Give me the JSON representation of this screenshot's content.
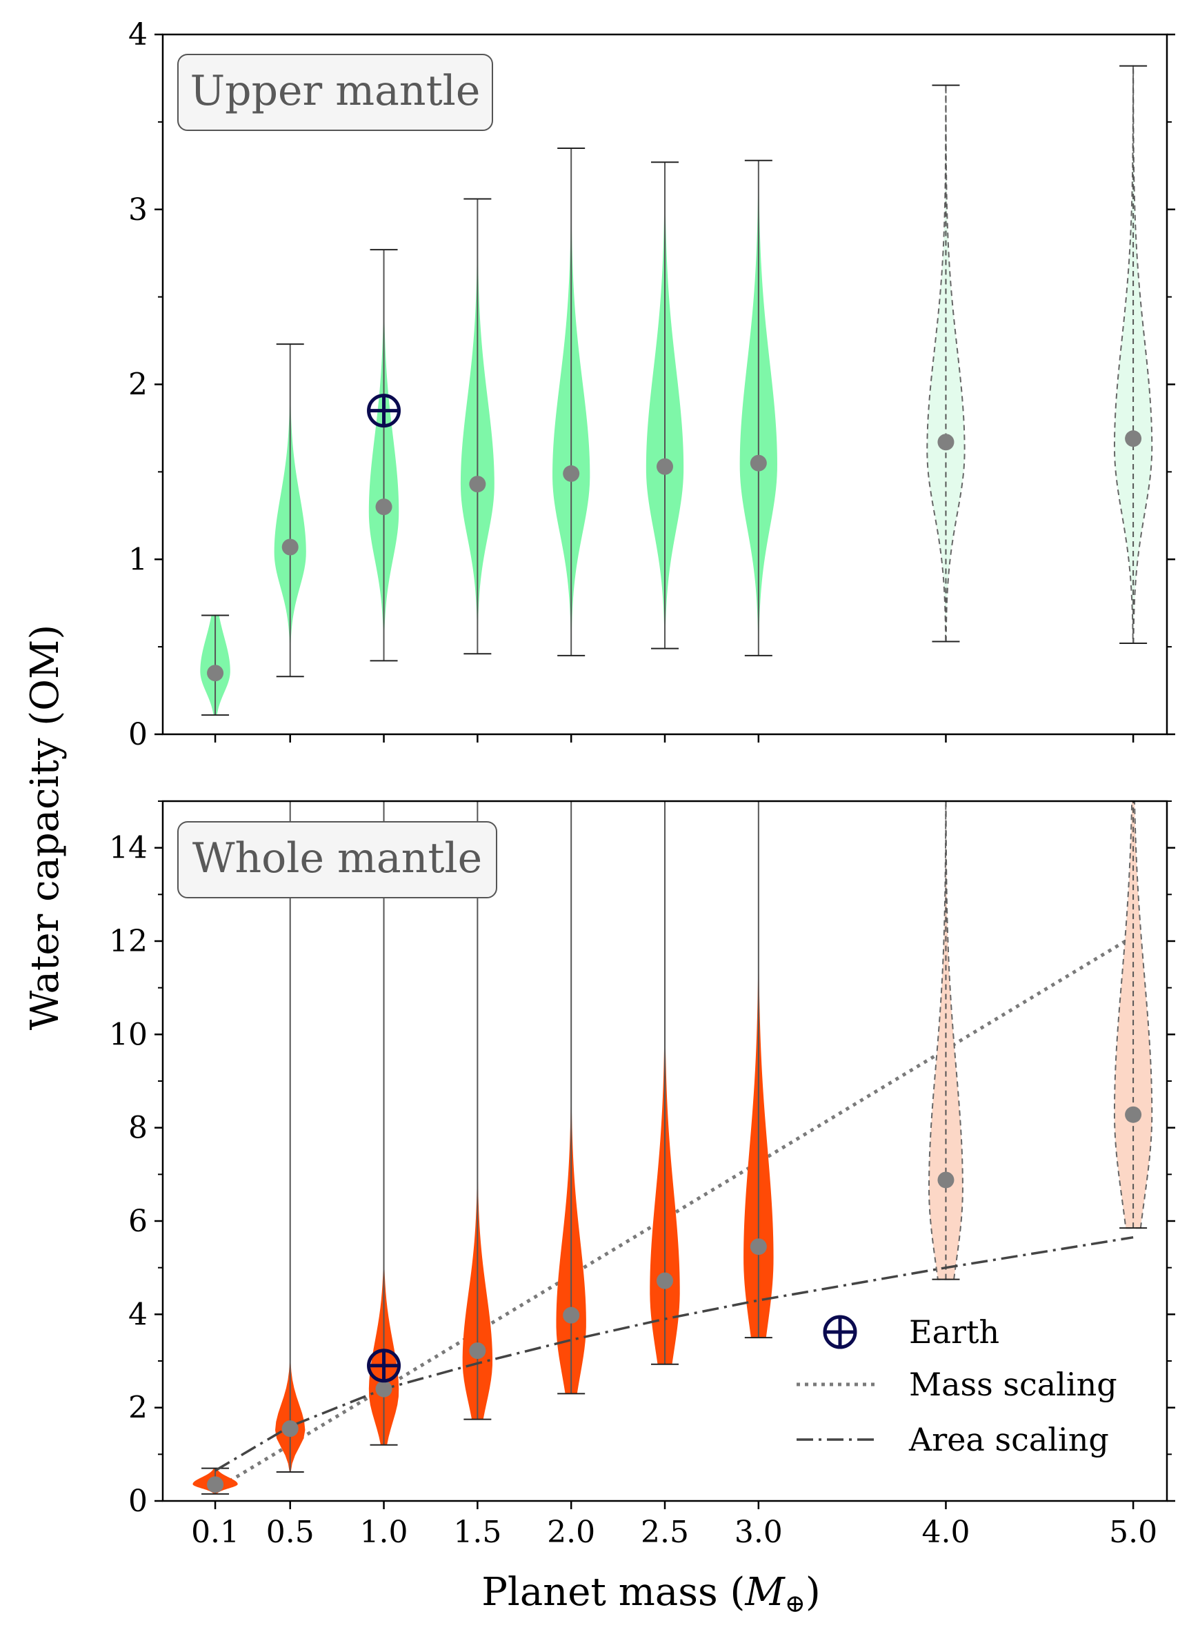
{
  "figure": {
    "xlabel": "Planet mass (M⊕)",
    "xlabel_main": "Planet mass (",
    "xlabel_symbol": "M",
    "xlabel_sub": "⊕",
    "xlabel_close": ")",
    "ylabel": "Water capacity (OM)"
  },
  "legend": {
    "earth": "Earth",
    "mass_scaling": "Mass scaling",
    "area_scaling": "Area scaling"
  },
  "colors": {
    "upper_fill": "#7ef7a8",
    "upper_fill_light": "#e3fbec",
    "whole_fill": "#ff4a06",
    "whole_fill_light": "#fcd7c6",
    "median_marker": "#808080",
    "earth_marker": "#0a0a4f",
    "mass_scaling_line": "#7a7a7a",
    "area_scaling_line": "#444444"
  },
  "chart_data": [
    {
      "type": "violin",
      "panel_label": "Upper mantle",
      "xticks": [
        "0.1",
        "0.5",
        "1.0",
        "1.5",
        "2.0",
        "2.5",
        "3.0",
        "4.0",
        "5.0"
      ],
      "x": [
        0.1,
        0.5,
        1.0,
        1.5,
        2.0,
        2.5,
        3.0,
        4.0,
        5.0
      ],
      "ylim": [
        0,
        4
      ],
      "yticks": [
        0,
        1,
        2,
        3,
        4
      ],
      "ytick_labels": [
        "0",
        "1",
        "2",
        "3",
        "4"
      ],
      "series": [
        {
          "x": 0.1,
          "median": 0.35,
          "min": 0.11,
          "max": 0.68,
          "mode": 0.36,
          "spread": 0.12,
          "width": 0.08,
          "style": "solid"
        },
        {
          "x": 0.5,
          "median": 1.07,
          "min": 0.33,
          "max": 2.23,
          "mode": 1.04,
          "spread": 0.2,
          "width": 0.085,
          "style": "solid"
        },
        {
          "x": 1.0,
          "median": 1.3,
          "min": 0.42,
          "max": 2.77,
          "mode": 1.27,
          "spread": 0.27,
          "width": 0.08,
          "style": "solid"
        },
        {
          "x": 1.5,
          "median": 1.43,
          "min": 0.46,
          "max": 3.06,
          "mode": 1.43,
          "spread": 0.3,
          "width": 0.09,
          "style": "solid"
        },
        {
          "x": 2.0,
          "median": 1.49,
          "min": 0.45,
          "max": 3.35,
          "mode": 1.48,
          "spread": 0.33,
          "width": 0.1,
          "style": "solid"
        },
        {
          "x": 2.5,
          "median": 1.53,
          "min": 0.49,
          "max": 3.27,
          "mode": 1.52,
          "spread": 0.35,
          "width": 0.1,
          "style": "solid"
        },
        {
          "x": 3.0,
          "median": 1.55,
          "min": 0.45,
          "max": 3.28,
          "mode": 1.54,
          "spread": 0.36,
          "width": 0.1,
          "style": "solid"
        },
        {
          "x": 4.0,
          "median": 1.67,
          "min": 0.53,
          "max": 3.71,
          "mode": 1.62,
          "spread": 0.36,
          "width": 0.1,
          "style": "light-dashed"
        },
        {
          "x": 5.0,
          "median": 1.69,
          "min": 0.52,
          "max": 3.82,
          "mode": 1.64,
          "spread": 0.38,
          "width": 0.1,
          "style": "light-dashed"
        }
      ],
      "earth": {
        "x": 1.0,
        "y": 1.85
      }
    },
    {
      "type": "violin",
      "panel_label": "Whole mantle",
      "xticks": [
        "0.1",
        "0.5",
        "1.0",
        "1.5",
        "2.0",
        "2.5",
        "3.0",
        "4.0",
        "5.0"
      ],
      "x": [
        0.1,
        0.5,
        1.0,
        1.5,
        2.0,
        2.5,
        3.0,
        4.0,
        5.0
      ],
      "ylim": [
        0,
        15
      ],
      "yticks": [
        0,
        2,
        4,
        6,
        8,
        10,
        12,
        14
      ],
      "ytick_labels": [
        "0",
        "2",
        "4",
        "6",
        "8",
        "10",
        "12",
        "14"
      ],
      "series": [
        {
          "x": 0.1,
          "median": 0.35,
          "min": 0.15,
          "max": 0.7,
          "mode": 0.36,
          "spread": 0.09,
          "width": 0.12,
          "style": "solid"
        },
        {
          "x": 0.5,
          "median": 1.55,
          "min": 0.62,
          "max": 15,
          "mode": 1.5,
          "spread": 0.35,
          "width": 0.08,
          "style": "solid"
        },
        {
          "x": 1.0,
          "median": 2.4,
          "min": 1.2,
          "max": 15,
          "mode": 2.35,
          "spread": 0.65,
          "width": 0.08,
          "style": "solid"
        },
        {
          "x": 1.5,
          "median": 3.22,
          "min": 1.75,
          "max": 15,
          "mode": 3.0,
          "spread": 0.9,
          "width": 0.08,
          "style": "solid"
        },
        {
          "x": 2.0,
          "median": 3.98,
          "min": 2.3,
          "max": 15,
          "mode": 3.8,
          "spread": 1.1,
          "width": 0.08,
          "style": "solid"
        },
        {
          "x": 2.5,
          "median": 4.72,
          "min": 2.93,
          "max": 15,
          "mode": 4.5,
          "spread": 1.3,
          "width": 0.08,
          "style": "solid"
        },
        {
          "x": 3.0,
          "median": 5.45,
          "min": 3.5,
          "max": 15,
          "mode": 5.2,
          "spread": 1.45,
          "width": 0.08,
          "style": "solid"
        },
        {
          "x": 4.0,
          "median": 6.88,
          "min": 4.75,
          "max": 15,
          "mode": 6.7,
          "spread": 1.6,
          "width": 0.09,
          "style": "light-dashed"
        },
        {
          "x": 5.0,
          "median": 8.28,
          "min": 5.85,
          "max": 15,
          "mode": 8.3,
          "spread": 1.8,
          "width": 0.1,
          "style": "light-dashed"
        }
      ],
      "earth": {
        "x": 1.0,
        "y": 2.9
      },
      "mass_scaling": {
        "x": [
          0.1,
          5.0
        ],
        "y": [
          0.24,
          12.1
        ]
      },
      "area_scaling": {
        "x": [
          0.1,
          0.5,
          1.0,
          1.5,
          2.0,
          2.5,
          3.0,
          4.0,
          5.0
        ],
        "y": [
          0.65,
          1.6,
          2.4,
          2.95,
          3.45,
          3.9,
          4.3,
          5.0,
          5.65
        ]
      }
    }
  ]
}
